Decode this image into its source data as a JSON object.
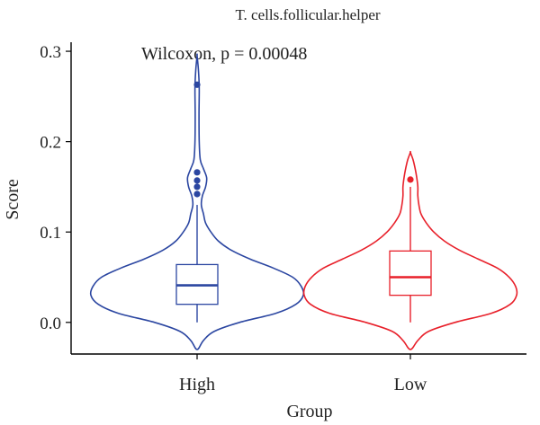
{
  "chart_data": {
    "type": "violin",
    "title": "T. cells.follicular.helper",
    "annotation": "Wilcoxon, p = 0.00048",
    "xlabel": "Group",
    "ylabel": "Score",
    "ylim": [
      -0.035,
      0.31
    ],
    "y_ticks": [
      "0.0",
      "0.1",
      "0.2",
      "0.3"
    ],
    "categories": [
      "High",
      "Low"
    ],
    "groups": [
      {
        "name": "High",
        "color": "#2b46a1",
        "violin": {
          "y": [
            -0.03,
            -0.02,
            -0.01,
            0.0,
            0.01,
            0.02,
            0.03,
            0.04,
            0.05,
            0.06,
            0.07,
            0.08,
            0.09,
            0.1,
            0.11,
            0.12,
            0.13,
            0.14,
            0.15,
            0.16,
            0.17,
            0.18,
            0.2,
            0.23,
            0.26,
            0.28,
            0.295
          ],
          "width": [
            0.0,
            0.06,
            0.16,
            0.4,
            0.74,
            0.93,
            1.0,
            0.98,
            0.9,
            0.72,
            0.5,
            0.32,
            0.2,
            0.13,
            0.08,
            0.06,
            0.04,
            0.05,
            0.08,
            0.09,
            0.06,
            0.03,
            0.02,
            0.018,
            0.02,
            0.012,
            0.0
          ]
        },
        "box": {
          "whisker_low": 0.0,
          "q1": 0.02,
          "median": 0.041,
          "q3": 0.064,
          "whisker_high": 0.13
        },
        "outliers": [
          0.142,
          0.15,
          0.157,
          0.166,
          0.263
        ]
      },
      {
        "name": "Low",
        "color": "#e8202a",
        "violin": {
          "y": [
            -0.03,
            -0.02,
            -0.01,
            0.0,
            0.01,
            0.02,
            0.03,
            0.04,
            0.05,
            0.06,
            0.07,
            0.08,
            0.09,
            0.1,
            0.11,
            0.12,
            0.13,
            0.14,
            0.15,
            0.16,
            0.17,
            0.18,
            0.188
          ],
          "width": [
            0.0,
            0.07,
            0.17,
            0.42,
            0.76,
            0.94,
            1.0,
            0.99,
            0.93,
            0.82,
            0.64,
            0.46,
            0.32,
            0.22,
            0.15,
            0.1,
            0.08,
            0.07,
            0.07,
            0.06,
            0.045,
            0.025,
            0.0
          ]
        },
        "box": {
          "whisker_low": 0.0,
          "q1": 0.03,
          "median": 0.05,
          "q3": 0.079,
          "whisker_high": 0.15
        },
        "outliers": [
          0.158
        ]
      }
    ]
  }
}
